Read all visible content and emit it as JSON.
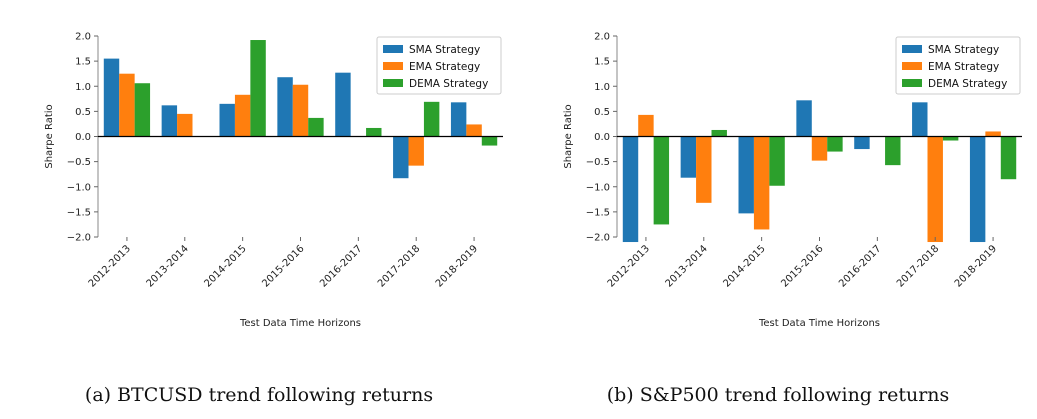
{
  "chart_data": [
    {
      "type": "bar",
      "caption": "(a) BTCUSD trend following returns",
      "xlabel": "Test Data Time Horizons",
      "ylabel": "Sharpe Ratio",
      "ylim": [
        -2.0,
        2.0
      ],
      "yticks": [
        -2.0,
        -1.5,
        -1.0,
        -0.5,
        0.0,
        0.5,
        1.0,
        1.5,
        2.0
      ],
      "ytick_labels": [
        "−2.0",
        "−1.5",
        "−1.0",
        "−0.5",
        "0.0",
        "0.5",
        "1.0",
        "1.5",
        "2.0"
      ],
      "categories": [
        "2012-2013",
        "2013-2014",
        "2014-2015",
        "2015-2016",
        "2016-2017",
        "2017-2018",
        "2018-2019"
      ],
      "legend_position": "top-right",
      "series": [
        {
          "name": "SMA Strategy",
          "color": "#1f77b4",
          "values": [
            1.55,
            0.62,
            0.65,
            1.18,
            1.27,
            -0.83,
            0.68
          ]
        },
        {
          "name": "EMA Strategy",
          "color": "#ff7f0e",
          "values": [
            1.25,
            0.45,
            0.83,
            1.03,
            0.0,
            -0.58,
            0.24
          ]
        },
        {
          "name": "DEMA Strategy",
          "color": "#2ca02c",
          "values": [
            1.06,
            0.0,
            1.92,
            0.37,
            0.17,
            0.69,
            -0.18
          ]
        }
      ]
    },
    {
      "type": "bar",
      "caption": "(b) S&P500 trend following returns",
      "xlabel": "Test Data Time Horizons",
      "ylabel": "Sharpe Ratio",
      "ylim": [
        -2.0,
        2.0
      ],
      "yticks": [
        -2.0,
        -1.5,
        -1.0,
        -0.5,
        0.0,
        0.5,
        1.0,
        1.5,
        2.0
      ],
      "ytick_labels": [
        "−2.0",
        "−1.5",
        "−1.0",
        "−0.5",
        "0.0",
        "0.5",
        "1.0",
        "1.5",
        "2.0"
      ],
      "categories": [
        "2012-2013",
        "2013-2014",
        "2014-2015",
        "2015-2016",
        "2016-2017",
        "2017-2018",
        "2018-2019"
      ],
      "legend_position": "top-right",
      "series": [
        {
          "name": "SMA Strategy",
          "color": "#1f77b4",
          "values": [
            -2.1,
            -0.82,
            -1.53,
            0.72,
            -0.25,
            0.68,
            -2.1
          ]
        },
        {
          "name": "EMA Strategy",
          "color": "#ff7f0e",
          "values": [
            0.43,
            -1.32,
            -1.85,
            -0.48,
            0.0,
            -2.1,
            0.1
          ]
        },
        {
          "name": "DEMA Strategy",
          "color": "#2ca02c",
          "values": [
            -1.75,
            0.13,
            -0.98,
            -0.3,
            -0.57,
            -0.08,
            -0.85
          ]
        }
      ]
    }
  ]
}
